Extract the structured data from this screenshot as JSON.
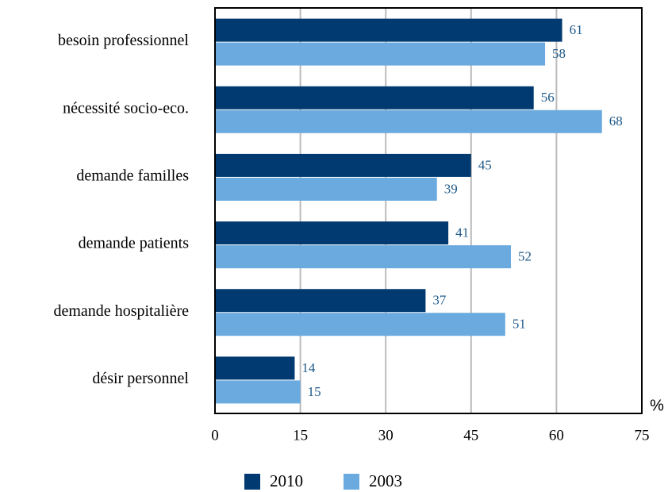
{
  "chart_data": {
    "type": "bar",
    "orientation": "horizontal",
    "categories": [
      "besoin professionnel",
      "nécessité socio-eco.",
      "demande familles",
      "demande patients",
      "demande hospitalière",
      "désir personnel"
    ],
    "series": [
      {
        "name": "2010",
        "color": "#003a70",
        "values": [
          61,
          56,
          45,
          41,
          37,
          14
        ]
      },
      {
        "name": "2003",
        "color": "#6aaade",
        "values": [
          58,
          68,
          39,
          52,
          51,
          15
        ]
      }
    ],
    "x_label": "%",
    "xlim": [
      0,
      75
    ],
    "xticks": [
      0,
      15,
      30,
      45,
      60,
      75
    ],
    "grid": true,
    "legend": "bottom"
  }
}
